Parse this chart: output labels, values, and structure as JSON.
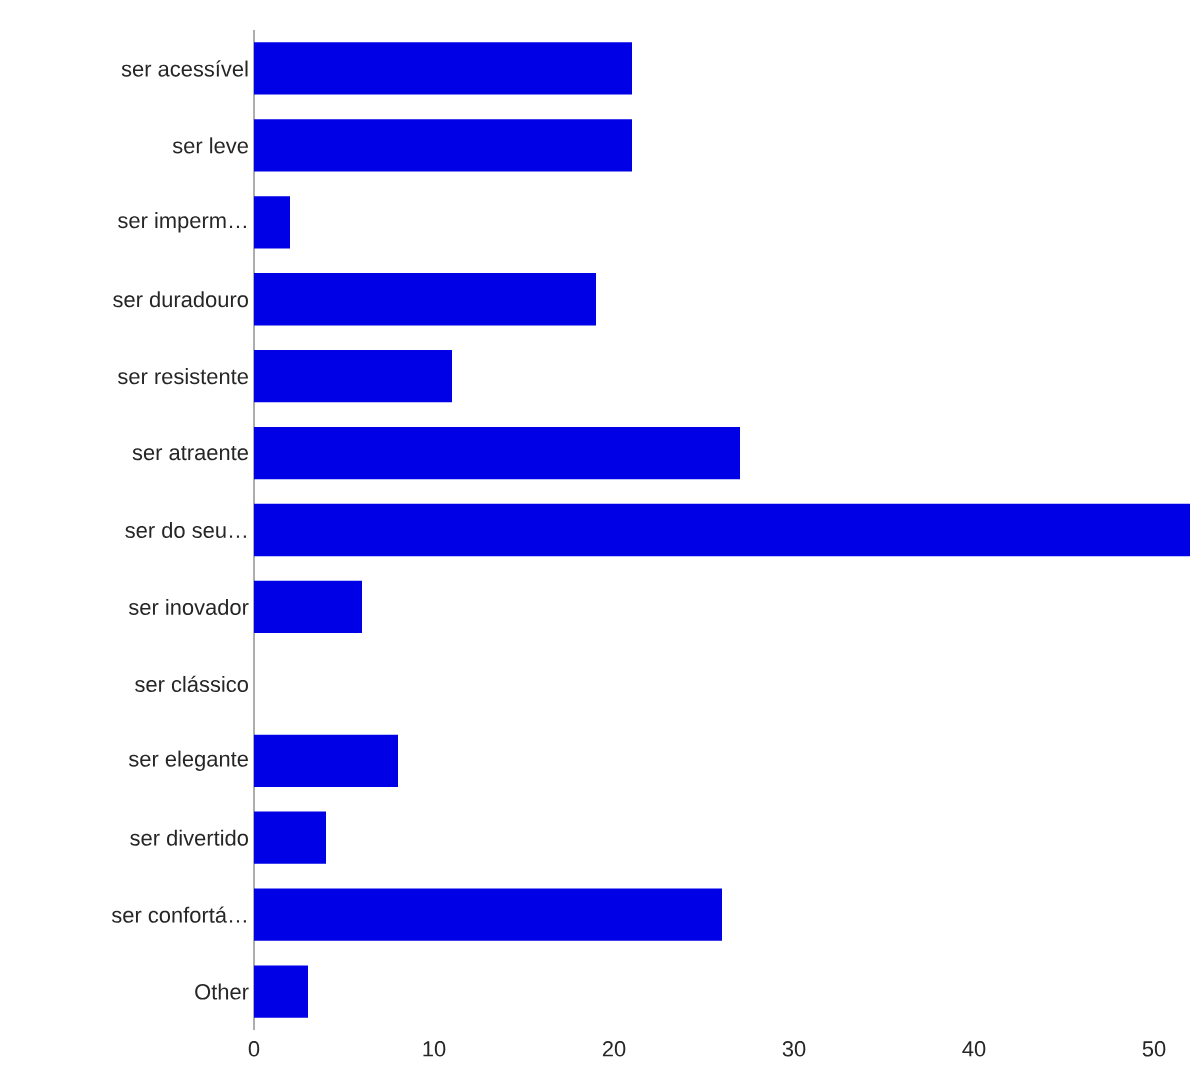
{
  "chart_data": {
    "type": "bar",
    "orientation": "horizontal",
    "categories": [
      "ser acessível",
      "ser leve",
      "ser imperm…",
      "ser duradouro",
      "ser resistente",
      "ser atraente",
      "ser do seu…",
      "ser inovador",
      "ser clássico",
      "ser elegante",
      "ser divertido",
      "ser confortá…",
      "Other"
    ],
    "values": [
      21,
      21,
      2,
      19,
      11,
      27,
      52,
      6,
      0,
      8,
      4,
      26,
      3
    ],
    "color": "#0000e6",
    "xlim": [
      0,
      52
    ],
    "xticks": [
      0,
      10,
      20,
      30,
      40,
      50
    ]
  }
}
